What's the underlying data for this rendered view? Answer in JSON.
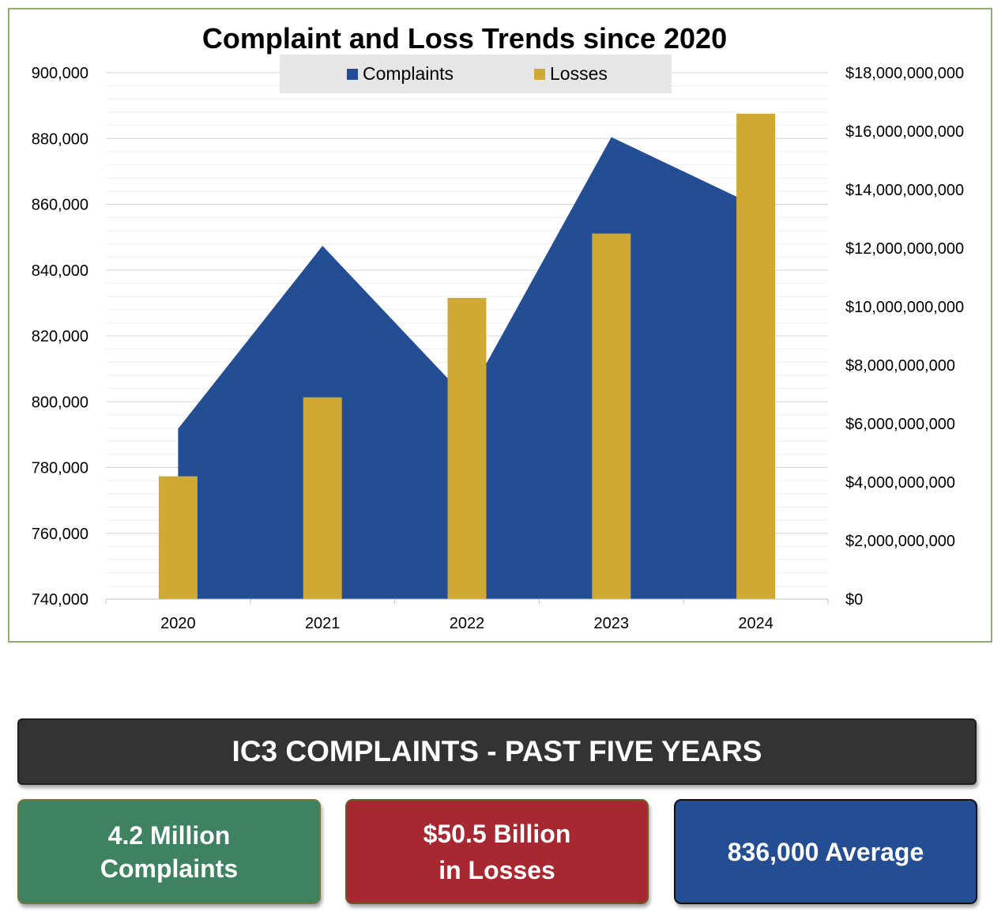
{
  "chart_data": {
    "type": "bar+area",
    "title": "Complaint and Loss Trends since 2020",
    "categories": [
      "2020",
      "2021",
      "2022",
      "2023",
      "2024"
    ],
    "series": [
      {
        "name": "Complaints",
        "type": "area",
        "axis": "left",
        "color": "#234e94",
        "values": [
          791790,
          847376,
          800944,
          880418,
          859532
        ]
      },
      {
        "name": "Losses",
        "type": "bar",
        "axis": "right",
        "color": "#d0a935",
        "values": [
          4200000000,
          6900000000,
          10300000000,
          12500000000,
          16600000000
        ]
      }
    ],
    "y_left": {
      "min": 740000,
      "max": 900000,
      "step": 20000,
      "tick_labels": [
        "740,000",
        "760,000",
        "780,000",
        "800,000",
        "820,000",
        "840,000",
        "860,000",
        "880,000",
        "900,000"
      ]
    },
    "y_right": {
      "min": 0,
      "max": 18000000000,
      "step": 2000000000,
      "tick_labels": [
        "$0",
        "$2,000,000,000",
        "$4,000,000,000",
        "$6,000,000,000",
        "$8,000,000,000",
        "$10,000,000,000",
        "$12,000,000,000",
        "$14,000,000,000",
        "$16,000,000,000",
        "$18,000,000,000"
      ]
    },
    "legend": {
      "position": "top",
      "entries": [
        "Complaints",
        "Losses"
      ]
    },
    "grid": true
  },
  "summary": {
    "banner": "IC3 COMPLAINTS - PAST FIVE YEARS",
    "complaints": {
      "line1": "4.2 Million",
      "line2": "Complaints",
      "color": "#3f8262"
    },
    "losses": {
      "line1": "$50.5 Billion",
      "line2": "in Losses",
      "color": "#a82832"
    },
    "average": {
      "line1": "836,000 Average",
      "color": "#234e94"
    }
  }
}
